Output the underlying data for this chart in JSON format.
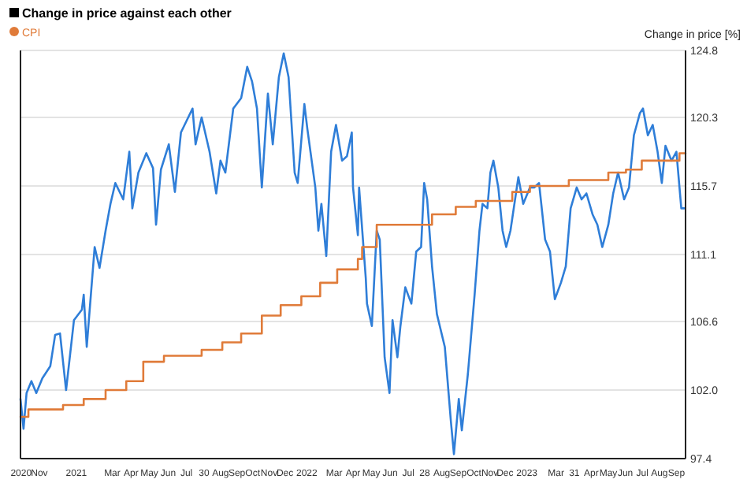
{
  "chart_data": {
    "type": "line",
    "title": "Change in price against each other",
    "ylabel": "Change in price [%]",
    "legend": "top left",
    "grid": "y",
    "xlim": [
      "2020-10-01",
      "2023-09-30"
    ],
    "xticks": [
      {
        "value": "2020-10-02",
        "label": "2020"
      },
      {
        "value": "2020-11-01",
        "label": "Nov"
      },
      {
        "value": "2021-01-01",
        "label": "2021"
      },
      {
        "value": "2021-03-01",
        "label": "Mar"
      },
      {
        "value": "2021-04-01",
        "label": "Apr"
      },
      {
        "value": "2021-05-01",
        "label": "May"
      },
      {
        "value": "2021-06-01",
        "label": "Jun"
      },
      {
        "value": "2021-07-01",
        "label": "Jul"
      },
      {
        "value": "2021-07-30",
        "label": "30"
      },
      {
        "value": "2021-08-26",
        "label": "Aug"
      },
      {
        "value": "2021-09-22",
        "label": "Sep"
      },
      {
        "value": "2021-10-18",
        "label": "Oct"
      },
      {
        "value": "2021-11-14",
        "label": "Nov"
      },
      {
        "value": "2021-12-10",
        "label": "Dec"
      },
      {
        "value": "2022-01-15",
        "label": "2022"
      },
      {
        "value": "2022-03-01",
        "label": "Mar"
      },
      {
        "value": "2022-04-01",
        "label": "Apr"
      },
      {
        "value": "2022-05-01",
        "label": "May"
      },
      {
        "value": "2022-06-01",
        "label": "Jun"
      },
      {
        "value": "2022-07-01",
        "label": "Jul"
      },
      {
        "value": "2022-07-28",
        "label": "28"
      },
      {
        "value": "2022-08-25",
        "label": "Aug"
      },
      {
        "value": "2022-09-21",
        "label": "Sep"
      },
      {
        "value": "2022-10-17",
        "label": "Oct"
      },
      {
        "value": "2022-11-12",
        "label": "Nov"
      },
      {
        "value": "2022-12-07",
        "label": "Dec"
      },
      {
        "value": "2023-01-12",
        "label": "2023"
      },
      {
        "value": "2023-03-01",
        "label": "Mar"
      },
      {
        "value": "2023-03-31",
        "label": "31"
      },
      {
        "value": "2023-04-28",
        "label": "Apr"
      },
      {
        "value": "2023-05-26",
        "label": "May"
      },
      {
        "value": "2023-06-23",
        "label": "Jun"
      },
      {
        "value": "2023-07-21",
        "label": "Jul"
      },
      {
        "value": "2023-08-18",
        "label": "Aug"
      },
      {
        "value": "2023-09-15",
        "label": "Sep"
      }
    ],
    "ylim": [
      97.4,
      124.8
    ],
    "yticks": [
      97.4,
      {
        "value": 102,
        "label": "102.0"
      },
      106.6,
      111.1,
      115.7,
      120.3,
      124.8
    ],
    "series": [
      {
        "color": "#2f7ed8",
        "x": [
          "2020-10-01",
          "2020-10-06",
          "2020-10-11",
          "2020-10-19",
          "2020-10-27",
          "2020-11-06",
          "2020-11-19",
          "2020-11-27",
          "2020-12-05",
          "2020-12-15",
          "2020-12-28",
          "2021-01-10",
          "2021-01-13",
          "2021-01-18",
          "2021-01-31",
          "2021-02-08",
          "2021-02-18",
          "2021-02-26",
          "2021-03-06",
          "2021-03-19",
          "2021-03-29",
          "2021-04-03",
          "2021-04-13",
          "2021-04-26",
          "2021-05-07",
          "2021-05-12",
          "2021-05-20",
          "2021-06-02",
          "2021-06-12",
          "2021-06-22",
          "2021-07-11",
          "2021-07-16",
          "2021-07-26",
          "2021-08-08",
          "2021-08-19",
          "2021-08-26",
          "2021-09-03",
          "2021-09-16",
          "2021-09-29",
          "2021-10-09",
          "2021-10-17",
          "2021-10-25",
          "2021-11-02",
          "2021-11-12",
          "2021-11-20",
          "2021-11-30",
          "2021-12-08",
          "2021-12-16",
          "2021-12-26",
          "2021-12-31",
          "2022-01-11",
          "2022-01-16",
          "2022-01-29",
          "2022-02-03",
          "2022-02-08",
          "2022-02-16",
          "2022-02-24",
          "2022-03-04",
          "2022-03-14",
          "2022-03-22",
          "2022-03-30",
          "2022-04-01",
          "2022-04-09",
          "2022-04-11",
          "2022-04-22",
          "2022-04-24",
          "2022-05-02",
          "2022-05-10",
          "2022-05-15",
          "2022-05-23",
          "2022-05-31",
          "2022-06-05",
          "2022-06-13",
          "2022-06-18",
          "2022-06-26",
          "2022-07-06",
          "2022-07-14",
          "2022-07-22",
          "2022-07-27",
          "2022-08-01",
          "2022-08-09",
          "2022-08-17",
          "2022-08-30",
          "2022-09-09",
          "2022-09-14",
          "2022-09-22",
          "2022-09-27",
          "2022-10-07",
          "2022-10-18",
          "2022-10-26",
          "2022-10-31",
          "2022-11-08",
          "2022-11-13",
          "2022-11-18",
          "2022-11-26",
          "2022-12-03",
          "2022-12-09",
          "2022-12-16",
          "2022-12-29",
          "2023-01-06",
          "2023-01-17",
          "2023-01-24",
          "2023-02-01",
          "2023-02-11",
          "2023-02-19",
          "2023-02-27",
          "2023-03-09",
          "2023-03-17",
          "2023-03-25",
          "2023-04-04",
          "2023-04-12",
          "2023-04-20",
          "2023-04-30",
          "2023-05-08",
          "2023-05-16",
          "2023-05-26",
          "2023-06-03",
          "2023-06-11",
          "2023-06-21",
          "2023-06-29",
          "2023-07-07",
          "2023-07-17",
          "2023-07-22",
          "2023-07-30",
          "2023-08-07",
          "2023-08-15",
          "2023-08-22",
          "2023-08-28",
          "2023-09-07",
          "2023-09-15",
          "2023-09-23",
          "2023-09-28"
        ],
        "values": [
          101.4,
          99.4,
          101.8,
          102.6,
          101.8,
          102.8,
          103.6,
          105.7,
          105.8,
          102.0,
          106.7,
          107.4,
          108.4,
          104.9,
          111.6,
          110.2,
          112.7,
          114.5,
          115.9,
          114.8,
          118.0,
          114.2,
          116.6,
          117.9,
          116.9,
          113.1,
          116.8,
          118.5,
          115.3,
          119.3,
          120.9,
          118.5,
          120.3,
          118.0,
          115.2,
          117.4,
          116.6,
          120.9,
          121.6,
          123.7,
          122.7,
          120.9,
          115.6,
          121.9,
          118.5,
          123.0,
          124.6,
          123.0,
          116.6,
          115.9,
          121.2,
          119.5,
          115.6,
          112.7,
          114.5,
          111.0,
          118.0,
          119.8,
          117.4,
          117.7,
          119.3,
          115.6,
          112.4,
          115.6,
          109.5,
          107.8,
          106.3,
          112.7,
          112.1,
          104.2,
          101.8,
          106.7,
          104.2,
          106.3,
          108.9,
          107.8,
          111.3,
          111.6,
          115.9,
          114.8,
          110.3,
          107.1,
          104.9,
          99.9,
          97.7,
          101.4,
          99.3,
          103.1,
          108.4,
          112.7,
          114.5,
          114.2,
          116.6,
          117.4,
          115.6,
          112.7,
          111.6,
          112.7,
          116.3,
          114.5,
          115.6,
          115.6,
          115.9,
          112.1,
          111.3,
          108.1,
          109.2,
          110.3,
          114.2,
          115.6,
          114.8,
          115.2,
          113.8,
          113.1,
          111.6,
          113.1,
          115.2,
          116.6,
          114.8,
          115.6,
          119.1,
          120.6,
          120.9,
          119.1,
          119.8,
          118.0,
          115.9,
          118.4,
          117.4,
          118.0,
          114.2,
          114.2
        ]
      },
      {
        "type": "step",
        "name": "CPI",
        "color": "#e07b39",
        "x": [
          "2020-10-01",
          "2020-10-14",
          "2020-12-10",
          "2021-01-13",
          "2021-02-18",
          "2021-03-24",
          "2021-04-21",
          "2021-05-25",
          "2021-07-26",
          "2021-08-29",
          "2021-09-29",
          "2021-11-02",
          "2021-12-03",
          "2022-01-06",
          "2022-02-06",
          "2022-03-06",
          "2022-04-09",
          "2022-04-16",
          "2022-05-10",
          "2022-08-09",
          "2022-09-17",
          "2022-10-20",
          "2022-12-19",
          "2023-01-17",
          "2023-03-22",
          "2023-05-26",
          "2023-06-24",
          "2023-07-20",
          "2023-09-20",
          "2023-09-30"
        ],
        "values": [
          100.2,
          100.7,
          101.0,
          101.4,
          102.0,
          102.6,
          103.9,
          104.3,
          104.7,
          105.2,
          105.8,
          107.0,
          107.7,
          108.3,
          109.2,
          110.1,
          110.8,
          111.6,
          113.1,
          113.8,
          114.3,
          114.7,
          115.3,
          115.7,
          116.1,
          116.6,
          116.8,
          117.4,
          117.9,
          117.9
        ]
      }
    ]
  }
}
